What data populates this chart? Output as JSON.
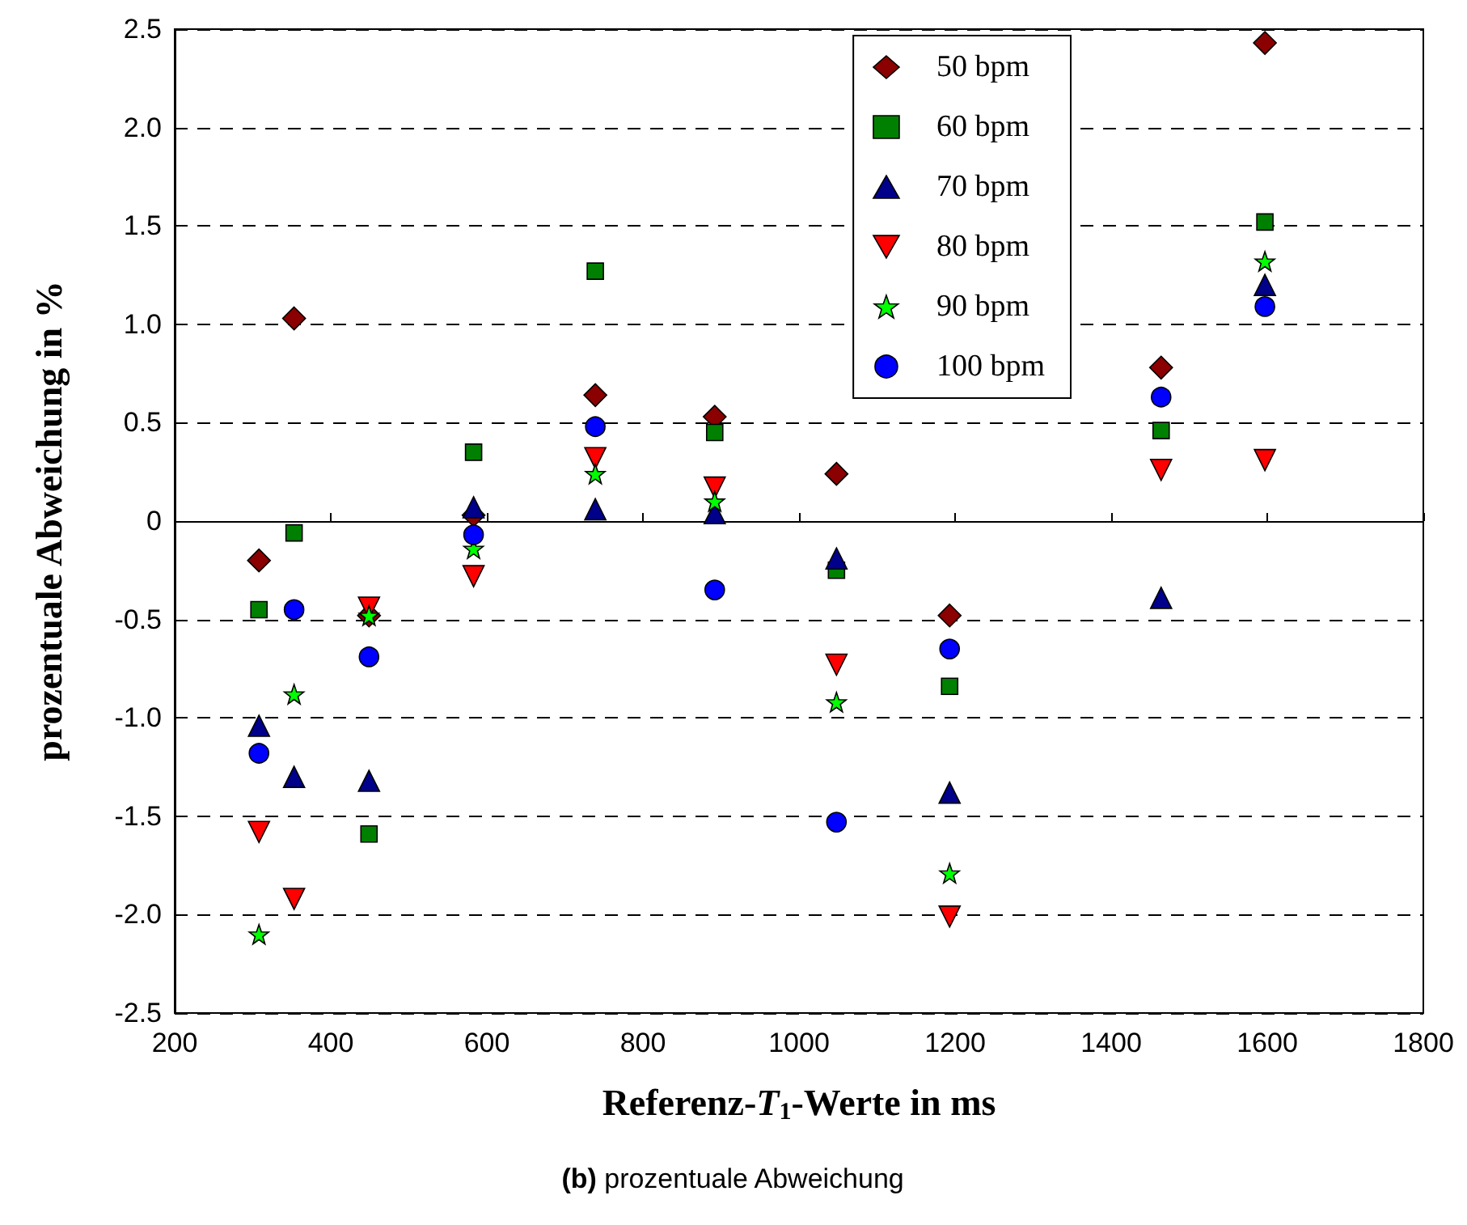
{
  "chart_data": {
    "type": "scatter",
    "xlabel": "Referenz-T$_{1}$-Werte in ms",
    "ylabel": "prozentuale Abweichung in %",
    "annotations": [
      "(b) prozentuale Abweichung"
    ],
    "xlim": [
      200,
      1800
    ],
    "xticks": [
      200,
      400,
      600,
      800,
      1000,
      1200,
      1400,
      1600,
      1800
    ],
    "ylim": [
      -2.5,
      2.5
    ],
    "yticks": [
      -2.5,
      {
        "value": -2,
        "label": "-2.0"
      },
      -1.5,
      {
        "value": -1,
        "label": "-1.0"
      },
      -0.5,
      0,
      0.5,
      {
        "value": 1,
        "label": "1.0"
      },
      1.5,
      {
        "value": 2,
        "label": "2.0"
      },
      2.5
    ],
    "grid": "y",
    "legend": "top right",
    "x": [
      308,
      353,
      449,
      583,
      739,
      892,
      1048,
      1193,
      1464,
      1597
    ],
    "series": [
      {
        "name": "50 bpm",
        "color": "#8b0000",
        "marker": "diamond",
        "values": [
          -0.2,
          1.03,
          -0.48,
          0.03,
          0.64,
          0.53,
          0.24,
          -0.48,
          0.78,
          2.43
        ]
      },
      {
        "name": "60 bpm",
        "color": "#008000",
        "marker": "square",
        "values": [
          -0.45,
          -0.06,
          -1.59,
          0.35,
          1.27,
          0.45,
          -0.25,
          -0.84,
          0.46,
          1.52
        ]
      },
      {
        "name": "70 bpm",
        "color": "#00008b",
        "marker": "triangle",
        "values": [
          -1.04,
          -1.3,
          -1.32,
          0.07,
          0.06,
          0.04,
          -0.19,
          -1.38,
          -0.39,
          1.2
        ]
      },
      {
        "name": "80 bpm",
        "color": "#ff0000",
        "marker": "triangle_down",
        "values": [
          -1.58,
          -1.92,
          -0.44,
          -0.28,
          0.32,
          0.17,
          -0.73,
          -2.01,
          0.26,
          0.31
        ]
      },
      {
        "name": "90 bpm",
        "color": "#00ff00",
        "marker": "star",
        "values": [
          -2.1,
          -0.88,
          -0.48,
          -0.14,
          0.24,
          0.1,
          -0.92,
          -1.79,
          null,
          1.32
        ]
      },
      {
        "name": "100 bpm",
        "color": "#0000ff",
        "marker": "circle",
        "values": [
          -1.18,
          -0.45,
          -0.69,
          -0.07,
          0.48,
          -0.35,
          -1.53,
          -0.65,
          0.63,
          1.09
        ]
      }
    ]
  }
}
